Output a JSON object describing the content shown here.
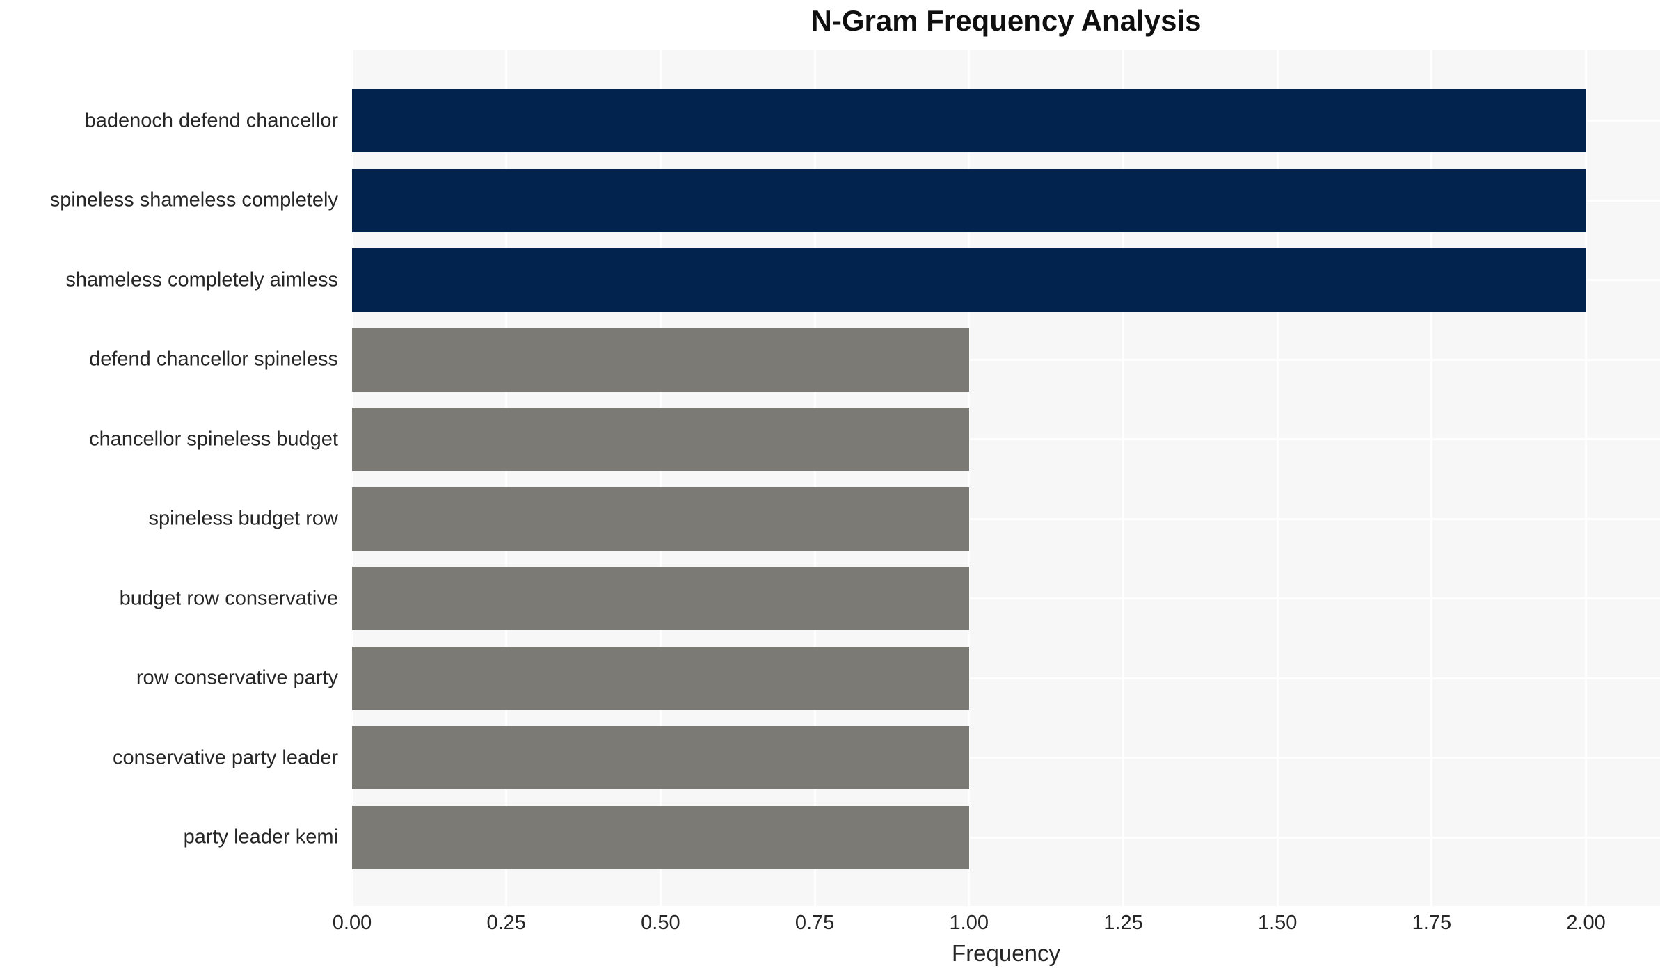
{
  "chart_data": {
    "type": "bar",
    "orientation": "horizontal",
    "title": "N-Gram Frequency Analysis",
    "xlabel": "Frequency",
    "ylabel": "",
    "categories": [
      "badenoch defend chancellor",
      "spineless shameless completely",
      "shameless completely aimless",
      "defend chancellor spineless",
      "chancellor spineless budget",
      "spineless budget row",
      "budget row conservative",
      "row conservative party",
      "conservative party leader",
      "party leader kemi"
    ],
    "values": [
      2,
      2,
      2,
      1,
      1,
      1,
      1,
      1,
      1,
      1
    ],
    "bar_colors": [
      "#02234e",
      "#02234e",
      "#02234e",
      "#7b7a75",
      "#7b7a75",
      "#7b7a75",
      "#7b7a75",
      "#7b7a75",
      "#7b7a75",
      "#7b7a75"
    ],
    "xlim": [
      0,
      2.12
    ],
    "xticks": [
      0,
      0.25,
      0.5,
      0.75,
      1,
      1.25,
      1.5,
      1.75,
      2
    ],
    "xtick_labels": [
      "0.00",
      "0.25",
      "0.50",
      "0.75",
      "1.00",
      "1.25",
      "1.50",
      "1.75",
      "2.00"
    ],
    "grid": "on",
    "legend": "none",
    "colors": {
      "bar_high": "#02234e",
      "bar_low": "#7b7a75",
      "panel_background": "#f7f7f8",
      "gridline": "#ffffff",
      "text": "#262626"
    }
  }
}
